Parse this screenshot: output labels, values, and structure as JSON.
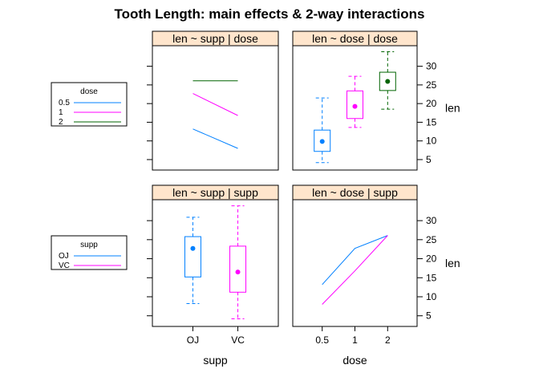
{
  "colors": {
    "strip_fill": "#ffe5cc",
    "dose_0.5": "#0080ff",
    "dose_1": "#ff00ff",
    "dose_2": "#006400",
    "supp_OJ": "#0080ff",
    "supp_VC": "#ff00ff"
  },
  "chart_data": {
    "type": "trellis-matrix",
    "title": "Tooth Length: main effects & 2-way interactions",
    "y_axis": {
      "label": "len",
      "ticks": [
        5,
        10,
        15,
        20,
        25,
        30
      ],
      "range": [
        2.2,
        35.5
      ]
    },
    "legends": [
      {
        "title": "dose",
        "entries": [
          {
            "label": "0.5",
            "color_key": "dose_0.5"
          },
          {
            "label": "1",
            "color_key": "dose_1"
          },
          {
            "label": "2",
            "color_key": "dose_2"
          }
        ]
      },
      {
        "title": "supp",
        "entries": [
          {
            "label": "OJ",
            "color_key": "supp_OJ"
          },
          {
            "label": "VC",
            "color_key": "supp_VC"
          }
        ]
      }
    ],
    "x_axes": [
      {
        "label": "supp",
        "categories": [
          "OJ",
          "VC"
        ]
      },
      {
        "label": "dose",
        "categories": [
          "0.5",
          "1",
          "2"
        ]
      }
    ],
    "panels": [
      {
        "strip": "len ~ supp | dose",
        "type": "line",
        "categories": [
          "OJ",
          "VC"
        ],
        "series": [
          {
            "name": "0.5",
            "color_key": "dose_0.5",
            "values": [
              13.2,
              8.0
            ]
          },
          {
            "name": "1",
            "color_key": "dose_1",
            "values": [
              22.7,
              16.8
            ]
          },
          {
            "name": "2",
            "color_key": "dose_2",
            "values": [
              26.1,
              26.1
            ]
          }
        ]
      },
      {
        "strip": "len ~ dose | dose",
        "type": "box",
        "categories": [
          "0.5",
          "1",
          "2"
        ],
        "boxes": [
          {
            "category": "0.5",
            "color_key": "dose_0.5",
            "whisker_low": 4.2,
            "q1": 7.2,
            "median": 9.85,
            "q3": 12.9,
            "whisker_high": 21.5
          },
          {
            "category": "1",
            "color_key": "dose_1",
            "whisker_low": 13.6,
            "q1": 16.0,
            "median": 19.25,
            "q3": 23.4,
            "whisker_high": 27.3
          },
          {
            "category": "2",
            "color_key": "dose_2",
            "whisker_low": 18.5,
            "q1": 23.5,
            "median": 25.95,
            "q3": 28.4,
            "whisker_high": 33.9
          }
        ]
      },
      {
        "strip": "len ~ supp | supp",
        "type": "box",
        "categories": [
          "OJ",
          "VC"
        ],
        "boxes": [
          {
            "category": "OJ",
            "color_key": "supp_OJ",
            "whisker_low": 8.2,
            "q1": 15.2,
            "median": 22.7,
            "q3": 25.8,
            "whisker_high": 30.9
          },
          {
            "category": "VC",
            "color_key": "supp_VC",
            "whisker_low": 4.2,
            "q1": 11.2,
            "median": 16.5,
            "q3": 23.3,
            "whisker_high": 33.9
          }
        ]
      },
      {
        "strip": "len ~ dose | supp",
        "type": "line",
        "categories": [
          "0.5",
          "1",
          "2"
        ],
        "series": [
          {
            "name": "OJ",
            "color_key": "supp_OJ",
            "values": [
              13.2,
              22.7,
              26.1
            ]
          },
          {
            "name": "VC",
            "color_key": "supp_VC",
            "values": [
              8.0,
              16.8,
              26.1
            ]
          }
        ]
      }
    ]
  }
}
